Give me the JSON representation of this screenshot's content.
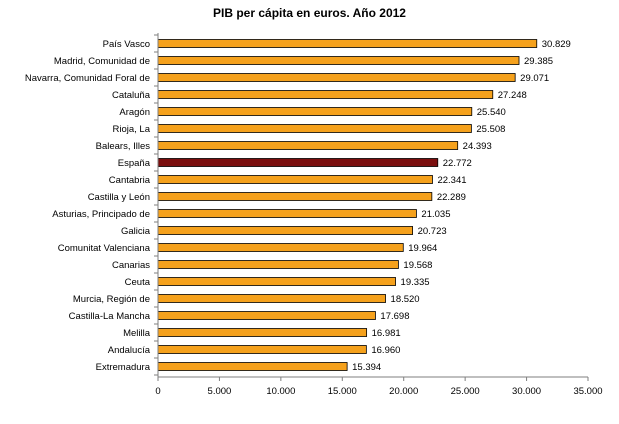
{
  "chart_data": {
    "type": "bar",
    "orientation": "horizontal",
    "title": "PIB per cápita en euros. Año 2012",
    "xlabel": "",
    "ylabel": "",
    "xlim": [
      0,
      35000
    ],
    "x_ticks": [
      0,
      5000,
      10000,
      15000,
      20000,
      25000,
      30000,
      35000
    ],
    "x_tick_labels": [
      "0",
      "5.000",
      "10.000",
      "15.000",
      "20.000",
      "25.000",
      "30.000",
      "35.000"
    ],
    "grid": false,
    "legend": "none",
    "categories": [
      "País Vasco",
      "Madrid, Comunidad de",
      "Navarra, Comunidad  Foral de",
      "Cataluña",
      "Aragón",
      "Rioja, La",
      "Balears, Illes",
      "España",
      "Cantabria",
      "Castilla y León",
      "Asturias, Principado de",
      "Galicia",
      "Comunitat Valenciana",
      "Canarias",
      "Ceuta",
      "Murcia, Región de",
      "Castilla-La Mancha",
      "Melilla",
      "Andalucía",
      "Extremadura"
    ],
    "values": [
      30829,
      29385,
      29071,
      27248,
      25540,
      25508,
      24393,
      22772,
      22341,
      22289,
      21035,
      20723,
      19964,
      19568,
      19335,
      18520,
      17698,
      16981,
      16960,
      15394
    ],
    "value_labels": [
      "30.829",
      "29.385",
      "29.071",
      "27.248",
      "25.540",
      "25.508",
      "24.393",
      "22.772",
      "22.341",
      "22.289",
      "21.035",
      "20.723",
      "19.964",
      "19.568",
      "19.335",
      "18.520",
      "17.698",
      "16.981",
      "16.960",
      "15.394"
    ],
    "colors": {
      "bar": "#F5A11C",
      "highlight": "#7B0E0E",
      "outline": "#000000"
    },
    "highlight_category": "España"
  }
}
